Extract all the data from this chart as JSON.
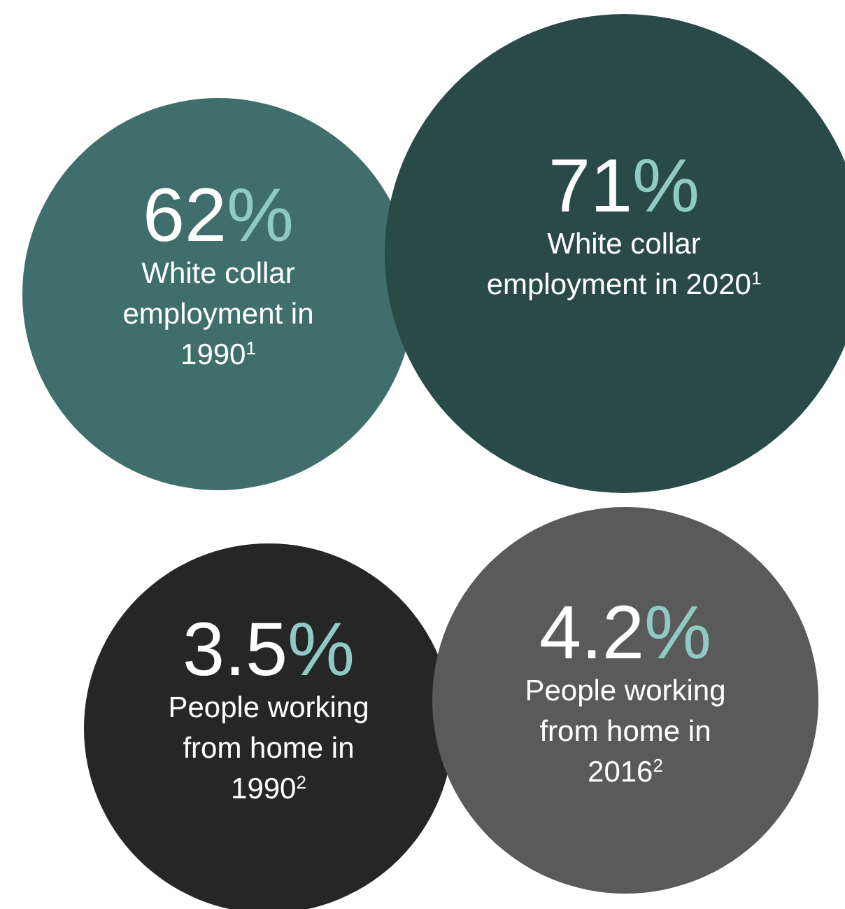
{
  "chart_data": {
    "type": "other",
    "categories": [
      "White collar employment in 1990$^{1}$",
      "White collar employment in 2020$^{1}$",
      "People working from home in 1990$^{2}$",
      "People working from home in 2016$^{2}$"
    ],
    "values": [
      62,
      71,
      3.5,
      4.2
    ],
    "value_labels": [
      "62%",
      "71%",
      "3.5%",
      "4.2%"
    ],
    "colors": [
      "#3f6e6c",
      "#294a47",
      "#262626",
      "#5a5a5a"
    ]
  }
}
